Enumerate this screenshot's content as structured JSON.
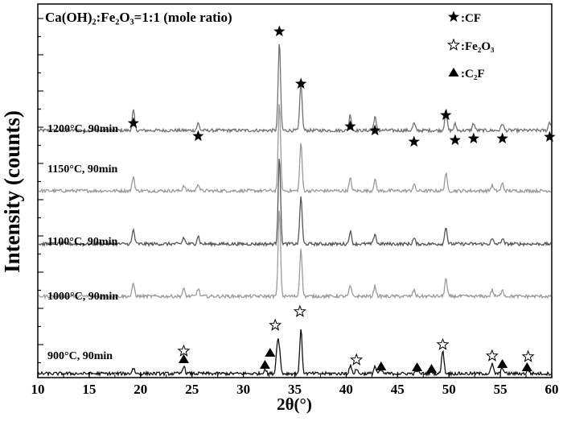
{
  "chart_data": {
    "type": "line",
    "title": "Ca(OH)₂:Fe₂O₃=1:1 (mole ratio)",
    "xlabel": "2θ(°)",
    "ylabel": "Intensity (counts)",
    "xlim": [
      10,
      60
    ],
    "xticks": [
      "10",
      "15",
      "20",
      "25",
      "30",
      "35",
      "40",
      "45",
      "50",
      "55",
      "60"
    ],
    "yticks": "none",
    "legend": {
      "position": "top-right",
      "entries": [
        {
          "marker": "filled-star",
          "label": "CF"
        },
        {
          "marker": "open-star",
          "label": "Fe₂O₃"
        },
        {
          "marker": "filled-triangle",
          "label": "C₂F"
        }
      ]
    },
    "series": [
      {
        "name": "1200°C, 90min",
        "color": "#707070",
        "peaks": [
          [
            19.3,
            25
          ],
          [
            25.6,
            9
          ],
          [
            33.5,
            110
          ],
          [
            35.6,
            60
          ],
          [
            40.4,
            20
          ],
          [
            42.8,
            17
          ],
          [
            46.6,
            9
          ],
          [
            49.7,
            26
          ],
          [
            50.6,
            8
          ],
          [
            52.4,
            9
          ],
          [
            55.2,
            9
          ],
          [
            59.8,
            11
          ]
        ],
        "markers": [
          [
            19.3,
            "filled-star"
          ],
          [
            25.6,
            "filled-star"
          ],
          [
            33.5,
            "filled-star"
          ],
          [
            35.6,
            "filled-star"
          ],
          [
            40.4,
            "filled-star"
          ],
          [
            42.8,
            "filled-star"
          ],
          [
            46.6,
            "filled-star"
          ],
          [
            49.7,
            "filled-star"
          ],
          [
            50.6,
            "filled-star"
          ],
          [
            52.4,
            "filled-star"
          ],
          [
            55.2,
            "filled-star"
          ],
          [
            59.8,
            "filled-star"
          ]
        ]
      },
      {
        "name": "1150°C, 90min",
        "color": "#999999",
        "peaks": [
          [
            19.3,
            18
          ],
          [
            24.2,
            7
          ],
          [
            25.6,
            9
          ],
          [
            33.5,
            110
          ],
          [
            35.6,
            60
          ],
          [
            40.4,
            15
          ],
          [
            42.8,
            14
          ],
          [
            46.6,
            8
          ],
          [
            49.7,
            22
          ],
          [
            54.2,
            7
          ],
          [
            55.2,
            9
          ]
        ],
        "markers": []
      },
      {
        "name": "1100°C, 90min",
        "color": "#555555",
        "peaks": [
          [
            19.3,
            18
          ],
          [
            24.2,
            8
          ],
          [
            25.6,
            10
          ],
          [
            33.5,
            110
          ],
          [
            35.6,
            60
          ],
          [
            40.4,
            16
          ],
          [
            42.8,
            13
          ],
          [
            46.6,
            7
          ],
          [
            49.7,
            22
          ],
          [
            54.2,
            6
          ],
          [
            55.2,
            7
          ]
        ],
        "markers": []
      },
      {
        "name": "1000°C, 90min",
        "color": "#9a9a9a",
        "peaks": [
          [
            19.3,
            16
          ],
          [
            24.2,
            9
          ],
          [
            25.6,
            10
          ],
          [
            33.5,
            110
          ],
          [
            35.6,
            60
          ],
          [
            40.4,
            13
          ],
          [
            42.8,
            13
          ],
          [
            46.6,
            8
          ],
          [
            49.7,
            22
          ],
          [
            54.2,
            8
          ],
          [
            55.2,
            9
          ]
        ],
        "markers": []
      },
      {
        "name": "900°C, 90min",
        "color": "#111111",
        "peaks": [
          [
            19.3,
            7
          ],
          [
            24.2,
            10
          ],
          [
            32.1,
            6
          ],
          [
            33.3,
            35
          ],
          [
            33.5,
            28
          ],
          [
            35.6,
            55
          ],
          [
            40.4,
            10
          ],
          [
            41.0,
            6
          ],
          [
            42.8,
            9
          ],
          [
            43.4,
            5
          ],
          [
            46.9,
            4
          ],
          [
            48.3,
            4
          ],
          [
            49.4,
            30
          ],
          [
            54.2,
            12
          ],
          [
            55.2,
            8
          ],
          [
            57.7,
            5
          ]
        ],
        "markers": [
          [
            24.2,
            "filled-triangle"
          ],
          [
            24.2,
            "open-star"
          ],
          [
            32.1,
            "filled-triangle"
          ],
          [
            32.6,
            "filled-triangle"
          ],
          [
            33.1,
            "open-star"
          ],
          [
            35.5,
            "open-star"
          ],
          [
            41.0,
            "open-star"
          ],
          [
            43.4,
            "filled-triangle"
          ],
          [
            46.9,
            "filled-triangle"
          ],
          [
            48.3,
            "filled-triangle"
          ],
          [
            49.4,
            "open-star"
          ],
          [
            54.2,
            "open-star"
          ],
          [
            55.2,
            "filled-triangle"
          ],
          [
            57.7,
            "open-star"
          ],
          [
            57.6,
            "filled-triangle"
          ]
        ]
      }
    ]
  }
}
